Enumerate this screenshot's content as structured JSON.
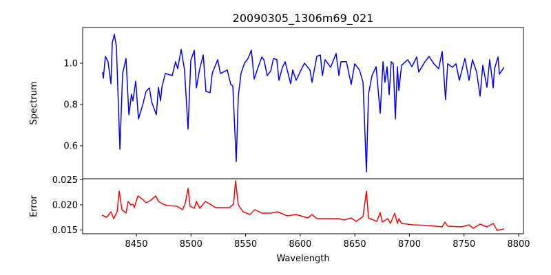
{
  "chart_data": [
    {
      "type": "line",
      "title": "20090305_1306m69_021",
      "xlabel": "",
      "ylabel": "Spectrum",
      "xlim": [
        8400.8,
        8804.4
      ],
      "ylim": [
        0.44,
        1.173
      ],
      "yticks": [
        "0.6",
        "0.8",
        "1.0"
      ],
      "ytick_values": [
        0.6,
        0.8,
        1.0
      ],
      "grid": false,
      "series": [
        {
          "name": "Spectrum",
          "color": "#0000ff",
          "x": [
            8419.1,
            8419.7,
            8421.6,
            8424.1,
            8426.7,
            8427.9,
            8429.8,
            8431.7,
            8434.9,
            8437.4,
            8440.5,
            8443.1,
            8445.6,
            8446.8,
            8449.4,
            8451.9,
            8455.7,
            8458.8,
            8462.0,
            8463.9,
            8468.3,
            8470.2,
            8472.1,
            8473.3,
            8476.5,
            8482.8,
            8485.9,
            8487.8,
            8491.0,
            8494.1,
            8497.3,
            8499.8,
            8503.0,
            8504.9,
            8508.0,
            8511.2,
            8513.7,
            8517.5,
            8519.4,
            8524.4,
            8526.9,
            8533.2,
            8536.4,
            8538.3,
            8541.4,
            8543.3,
            8545.8,
            8549.0,
            8552.2,
            8555.3,
            8557.8,
            8561.6,
            8564.8,
            8566.7,
            8569.8,
            8573.0,
            8575.5,
            8578.6,
            8580.5,
            8583.7,
            8586.2,
            8591.3,
            8593.1,
            8596.3,
            8600.7,
            8603.9,
            8608.9,
            8610.8,
            8615.2,
            8618.4,
            8620.3,
            8622.8,
            8627.8,
            8632.9,
            8635.4,
            8637.3,
            8642.3,
            8646.7,
            8649.9,
            8654.3,
            8657.5,
            8660.6,
            8662.5,
            8665.7,
            8669.5,
            8673.2,
            8675.8,
            8677.6,
            8679.5,
            8681.4,
            8683.3,
            8685.2,
            8687.1,
            8689.0,
            8690.3,
            8692.8,
            8698.5,
            8702.2,
            8706.7,
            8708.5,
            8714.2,
            8718.0,
            8722.4,
            8726.8,
            8730.0,
            8733.1,
            8735.0,
            8739.4,
            8742.6,
            8745.7,
            8750.8,
            8754.6,
            8757.7,
            8761.5,
            8764.7,
            8767.2,
            8771.0,
            8773.5,
            8776.7,
            8777.9,
            8781.1,
            8782.3,
            8786.7
          ],
          "y": [
            0.957,
            0.927,
            1.033,
            1.007,
            0.9,
            1.1,
            1.14,
            1.08,
            0.583,
            0.95,
            1.023,
            0.75,
            0.85,
            0.817,
            0.913,
            0.73,
            0.797,
            0.863,
            0.88,
            0.813,
            0.75,
            0.883,
            0.817,
            0.883,
            0.95,
            0.94,
            1.007,
            0.973,
            1.067,
            0.967,
            0.68,
            1.013,
            1.063,
            0.88,
            0.973,
            1.04,
            0.863,
            0.857,
            0.95,
            1.017,
            0.95,
            0.967,
            0.897,
            0.89,
            0.523,
            0.84,
            0.95,
            1.0,
            1.023,
            1.063,
            0.923,
            0.983,
            1.03,
            1.017,
            0.94,
            0.963,
            1.023,
            1.017,
            0.917,
            0.98,
            1.007,
            0.9,
            0.967,
            0.917,
            0.967,
            1.0,
            0.967,
            0.907,
            1.033,
            1.04,
            0.94,
            1.017,
            0.98,
            1.047,
            0.94,
            1.007,
            1.007,
            0.897,
            0.997,
            0.967,
            0.907,
            0.473,
            0.85,
            0.94,
            0.983,
            0.757,
            1.007,
            0.907,
            0.983,
            0.847,
            1.007,
            0.997,
            0.73,
            0.983,
            0.867,
            0.99,
            1.017,
            0.983,
            1.03,
            0.957,
            1.007,
            1.033,
            0.997,
            0.973,
            1.057,
            0.823,
            0.997,
            0.98,
            0.997,
            0.917,
            1.023,
            0.917,
            1.017,
            0.957,
            0.84,
            0.99,
            0.883,
            1.017,
            0.88,
            0.973,
            1.03,
            0.947,
            0.98
          ]
        }
      ]
    },
    {
      "type": "line",
      "title": "",
      "xlabel": "Wavelength",
      "ylabel": "Error",
      "xlim": [
        8400.8,
        8804.4
      ],
      "ylim": [
        0.01425,
        0.0252
      ],
      "xticks": [
        "8450",
        "8500",
        "8550",
        "8600",
        "8650",
        "8700",
        "8750",
        "8800"
      ],
      "xtick_values": [
        8450,
        8500,
        8550,
        8600,
        8650,
        8700,
        8750,
        8800
      ],
      "yticks": [
        "0.015",
        "0.020",
        "0.025"
      ],
      "ytick_values": [
        0.015,
        0.02,
        0.025
      ],
      "grid": false,
      "series": [
        {
          "name": "Error",
          "color": "#ff0000",
          "x": [
            8418.5,
            8422.9,
            8426.7,
            8429.2,
            8432.3,
            8434.2,
            8436.8,
            8440.5,
            8442.4,
            8445.0,
            8446.8,
            8448.1,
            8451.3,
            8455.7,
            8458.8,
            8462.6,
            8467.7,
            8470.2,
            8474.6,
            8478.4,
            8487.2,
            8492.3,
            8494.8,
            8497.3,
            8499.2,
            8503.0,
            8504.9,
            8508.0,
            8513.1,
            8517.5,
            8522.5,
            8528.2,
            8535.1,
            8538.9,
            8540.8,
            8543.3,
            8547.7,
            8554.0,
            8558.5,
            8564.8,
            8573.0,
            8579.3,
            8588.1,
            8596.3,
            8602.6,
            8607.0,
            8610.8,
            8615.2,
            8623.4,
            8635.4,
            8640.4,
            8646.7,
            8651.2,
            8657.5,
            8660.6,
            8662.5,
            8670.1,
            8673.2,
            8675.1,
            8680.2,
            8682.7,
            8686.5,
            8689.0,
            8690.3,
            8692.8,
            8703.5,
            8718.0,
            8730.0,
            8732.5,
            8735.0,
            8747.6,
            8754.6,
            8758.4,
            8764.7,
            8771.0,
            8776.7,
            8780.4,
            8786.7
          ],
          "y": [
            0.01795,
            0.01753,
            0.01863,
            0.01726,
            0.01863,
            0.02274,
            0.01904,
            0.01836,
            0.02068,
            0.02,
            0.02014,
            0.01945,
            0.02178,
            0.0211,
            0.02041,
            0.02082,
            0.02178,
            0.02068,
            0.02014,
            0.01986,
            0.01973,
            0.01904,
            0.02041,
            0.02329,
            0.01973,
            0.01932,
            0.02068,
            0.01932,
            0.02068,
            0.02014,
            0.01945,
            0.01945,
            0.01945,
            0.02014,
            0.02479,
            0.02,
            0.01863,
            0.01808,
            0.01904,
            0.01836,
            0.01836,
            0.01863,
            0.01781,
            0.01808,
            0.01767,
            0.0174,
            0.01808,
            0.01726,
            0.01726,
            0.01726,
            0.01699,
            0.0174,
            0.01671,
            0.01767,
            0.02274,
            0.0174,
            0.01671,
            0.01849,
            0.01658,
            0.01726,
            0.0163,
            0.01836,
            0.0163,
            0.01726,
            0.0163,
            0.01603,
            0.01589,
            0.01562,
            0.01658,
            0.01575,
            0.01562,
            0.01603,
            0.01534,
            0.01616,
            0.01562,
            0.0163,
            0.01493,
            0.01521
          ]
        }
      ]
    }
  ]
}
